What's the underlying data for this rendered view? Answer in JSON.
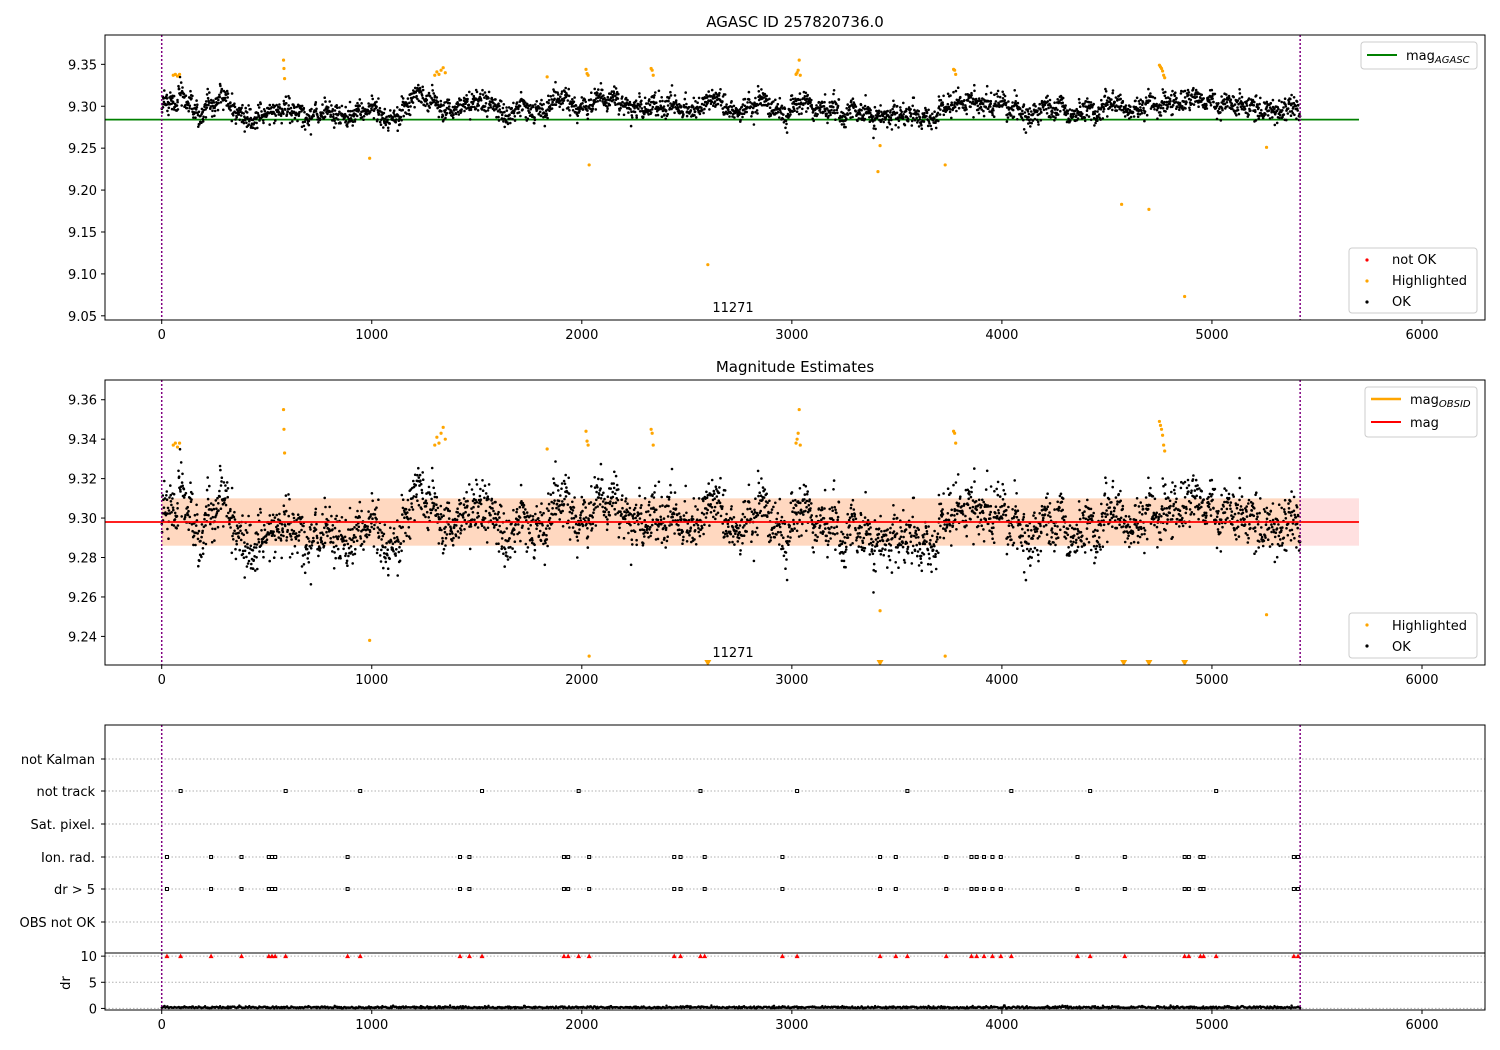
{
  "figure": {
    "panel1_title": "AGASC ID 257820736.0",
    "panel2_title": "Magnitude Estimates",
    "obsid_label": "11271",
    "colors": {
      "ok": "#000000",
      "highlighted": "#ffa500",
      "not_ok": "#ff0000",
      "mag_agasc": "#008000",
      "mag": "#ff0000",
      "mag_obsid": "#ffa500",
      "obsid_bounds": "#800080",
      "band": "#ffcccc"
    }
  },
  "chart_data": [
    {
      "type": "scatter",
      "title": "AGASC ID 257820736.0",
      "xlim": [
        -270,
        6300
      ],
      "ylim": [
        9.045,
        9.385
      ],
      "x_ticks": [
        0,
        1000,
        2000,
        3000,
        4000,
        5000,
        6000
      ],
      "y_ticks": [
        "9.05",
        "9.10",
        "9.15",
        "9.20",
        "9.25",
        "9.30",
        "9.35"
      ],
      "grid": false,
      "legend_upper": {
        "position": "top-right",
        "entries": [
          "mag_AGASC"
        ]
      },
      "legend_lower": {
        "position": "bottom-right",
        "entries": [
          "not OK",
          "Highlighted",
          "OK"
        ]
      },
      "lines": [
        {
          "name": "mag_AGASC",
          "y": 9.284,
          "x": [
            -270,
            5700
          ]
        }
      ],
      "vlines": [
        0,
        5420
      ],
      "ok_series": {
        "name": "OK",
        "x_range": [
          0,
          5420
        ],
        "y_center": 9.298,
        "y_spread": 0.012,
        "count": 3200
      },
      "highlighted": {
        "name": "Highlighted",
        "points": [
          [
            55,
            9.337
          ],
          [
            65,
            9.338
          ],
          [
            75,
            9.336
          ],
          [
            85,
            9.338
          ],
          [
            580,
            9.355
          ],
          [
            582,
            9.345
          ],
          [
            585,
            9.333
          ],
          [
            990,
            9.238
          ],
          [
            1300,
            9.337
          ],
          [
            1310,
            9.341
          ],
          [
            1320,
            9.338
          ],
          [
            1330,
            9.343
          ],
          [
            1340,
            9.346
          ],
          [
            1350,
            9.34
          ],
          [
            1835,
            9.335
          ],
          [
            2020,
            9.344
          ],
          [
            2025,
            9.339
          ],
          [
            2030,
            9.337
          ],
          [
            2035,
            9.23
          ],
          [
            2330,
            9.345
          ],
          [
            2335,
            9.343
          ],
          [
            2340,
            9.337
          ],
          [
            2600,
            9.111
          ],
          [
            3020,
            9.338
          ],
          [
            3025,
            9.34
          ],
          [
            3030,
            9.343
          ],
          [
            3035,
            9.355
          ],
          [
            3040,
            9.337
          ],
          [
            3410,
            9.222
          ],
          [
            3420,
            9.253
          ],
          [
            3730,
            9.23
          ],
          [
            3770,
            9.344
          ],
          [
            3775,
            9.343
          ],
          [
            3780,
            9.338
          ],
          [
            4570,
            9.183
          ],
          [
            4700,
            9.177
          ],
          [
            4750,
            9.349
          ],
          [
            4755,
            9.347
          ],
          [
            4760,
            9.345
          ],
          [
            4765,
            9.342
          ],
          [
            4770,
            9.337
          ],
          [
            4775,
            9.334
          ],
          [
            4870,
            9.073
          ],
          [
            5260,
            9.251
          ]
        ]
      }
    },
    {
      "type": "scatter",
      "title": "Magnitude Estimates",
      "xlim": [
        -270,
        6300
      ],
      "ylim": [
        9.2255,
        9.37
      ],
      "x_ticks": [
        0,
        1000,
        2000,
        3000,
        4000,
        5000,
        6000
      ],
      "y_ticks": [
        "9.24",
        "9.26",
        "9.28",
        "9.30",
        "9.32",
        "9.34",
        "9.36"
      ],
      "grid": false,
      "legend_upper": {
        "position": "top-right",
        "entries": [
          "mag_OBSID",
          "mag"
        ]
      },
      "legend_lower": {
        "position": "bottom-right",
        "entries": [
          "Highlighted",
          "OK"
        ]
      },
      "lines": [
        {
          "name": "mag",
          "y": 9.298,
          "x": [
            -270,
            5700
          ]
        }
      ],
      "bands": [
        {
          "y": [
            9.286,
            9.31
          ],
          "x": [
            0,
            5420
          ],
          "color": "peach"
        },
        {
          "y": [
            9.286,
            9.31
          ],
          "x": [
            5420,
            5700
          ],
          "color": "pink"
        }
      ],
      "vlines": [
        0,
        5420
      ],
      "out_of_range_markers": [
        2600,
        3420,
        4580,
        4700,
        4870
      ]
    },
    {
      "type": "scatter",
      "title": "",
      "xlim": [
        -270,
        6300
      ],
      "x_ticks": [
        0,
        1000,
        2000,
        3000,
        4000,
        5000,
        6000
      ],
      "categories": [
        "not Kalman",
        "not track",
        "Sat. pixel.",
        "Ion. rad.",
        "dr > 5",
        "OBS not OK"
      ],
      "flags": {
        "not track": [
          90,
          590,
          945,
          1525,
          1985,
          2565,
          3025,
          3550,
          4045,
          4420,
          5020
        ],
        "Ion. rad.": [
          25,
          235,
          380,
          510,
          525,
          540,
          885,
          1420,
          1465,
          1915,
          1935,
          2035,
          2440,
          2470,
          2585,
          2955,
          3420,
          3495,
          3735,
          3855,
          3880,
          3915,
          3955,
          3995,
          4360,
          4585,
          4870,
          4890,
          4945,
          4960,
          5390,
          5410
        ],
        "dr > 5": [
          25,
          235,
          380,
          510,
          525,
          540,
          885,
          1420,
          1465,
          1915,
          1935,
          2035,
          2440,
          2470,
          2585,
          2955,
          3420,
          3495,
          3735,
          3855,
          3880,
          3915,
          3955,
          3995,
          4360,
          4585,
          4870,
          4890,
          4945,
          4960,
          5390,
          5410
        ]
      },
      "dr_axis": {
        "ylabel": "dr",
        "ylim": [
          -0.3,
          10.6
        ],
        "y_ticks": [
          "0",
          "5",
          "10"
        ],
        "clipped_points_x": [
          25,
          90,
          235,
          380,
          510,
          525,
          540,
          590,
          885,
          945,
          1420,
          1465,
          1525,
          1915,
          1935,
          1985,
          2035,
          2440,
          2470,
          2565,
          2585,
          2955,
          3025,
          3420,
          3495,
          3550,
          3735,
          3855,
          3880,
          3915,
          3955,
          3995,
          4045,
          4360,
          4420,
          4585,
          4870,
          4890,
          4945,
          4960,
          5020,
          5390,
          5410
        ]
      }
    }
  ],
  "legends": {
    "agasc_upper": {
      "main": "mag",
      "sub": "AGASC"
    },
    "p1_lower": [
      "not OK",
      "Highlighted",
      "OK"
    ],
    "p2_upper": [
      {
        "main": "mag",
        "sub": "OBSID"
      },
      {
        "main": "mag",
        "sub": ""
      }
    ],
    "p2_lower": [
      "Highlighted",
      "OK"
    ]
  }
}
